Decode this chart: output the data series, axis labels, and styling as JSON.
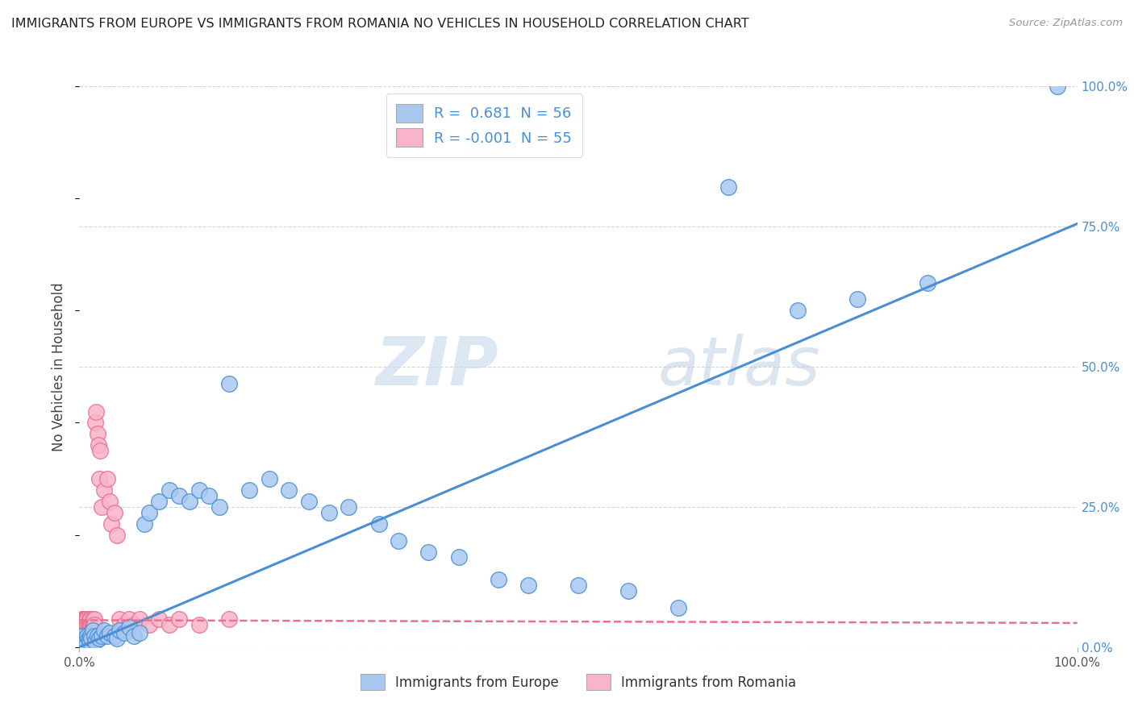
{
  "title": "IMMIGRANTS FROM EUROPE VS IMMIGRANTS FROM ROMANIA NO VEHICLES IN HOUSEHOLD CORRELATION CHART",
  "source": "Source: ZipAtlas.com",
  "ylabel": "No Vehicles in Household",
  "xlim": [
    0,
    1.0
  ],
  "ylim": [
    0,
    1.0
  ],
  "series1_color": "#a8c8f0",
  "series2_color": "#f8b4c8",
  "line1_color": "#4a8fd4",
  "line2_color": "#e87090",
  "grid_color": "#cccccc",
  "bg_color": "#ffffff",
  "watermark_zip": "ZIP",
  "watermark_atlas": "atlas",
  "series1_label": "Immigrants from Europe",
  "series2_label": "Immigrants from Romania",
  "blue_line_x0": 0.0,
  "blue_line_y0": 0.0,
  "blue_line_x1": 1.0,
  "blue_line_y1": 0.755,
  "pink_line_x0": 0.0,
  "pink_line_y0": 0.048,
  "pink_line_x1": 1.0,
  "pink_line_y1": 0.043,
  "blue_x": [
    0.003,
    0.004,
    0.005,
    0.006,
    0.007,
    0.008,
    0.009,
    0.01,
    0.011,
    0.012,
    0.013,
    0.015,
    0.016,
    0.018,
    0.02,
    0.022,
    0.025,
    0.028,
    0.03,
    0.035,
    0.038,
    0.04,
    0.045,
    0.05,
    0.055,
    0.06,
    0.065,
    0.07,
    0.08,
    0.09,
    0.1,
    0.11,
    0.12,
    0.13,
    0.14,
    0.15,
    0.17,
    0.19,
    0.21,
    0.23,
    0.25,
    0.27,
    0.3,
    0.32,
    0.35,
    0.38,
    0.42,
    0.45,
    0.5,
    0.55,
    0.6,
    0.65,
    0.72,
    0.78,
    0.85,
    0.98
  ],
  "blue_y": [
    0.01,
    0.02,
    0.015,
    0.01,
    0.005,
    0.02,
    0.015,
    0.01,
    0.02,
    0.015,
    0.03,
    0.02,
    0.01,
    0.02,
    0.015,
    0.02,
    0.03,
    0.02,
    0.025,
    0.02,
    0.015,
    0.03,
    0.025,
    0.035,
    0.02,
    0.025,
    0.22,
    0.24,
    0.26,
    0.28,
    0.27,
    0.26,
    0.28,
    0.27,
    0.25,
    0.47,
    0.28,
    0.3,
    0.28,
    0.26,
    0.24,
    0.25,
    0.22,
    0.19,
    0.17,
    0.16,
    0.12,
    0.11,
    0.11,
    0.1,
    0.07,
    0.82,
    0.6,
    0.62,
    0.65,
    1.0
  ],
  "pink_x": [
    0.001,
    0.002,
    0.003,
    0.003,
    0.004,
    0.004,
    0.005,
    0.005,
    0.005,
    0.006,
    0.006,
    0.006,
    0.007,
    0.007,
    0.007,
    0.008,
    0.008,
    0.009,
    0.009,
    0.01,
    0.01,
    0.01,
    0.011,
    0.011,
    0.012,
    0.012,
    0.013,
    0.013,
    0.014,
    0.015,
    0.015,
    0.016,
    0.017,
    0.018,
    0.019,
    0.02,
    0.021,
    0.022,
    0.025,
    0.028,
    0.03,
    0.032,
    0.035,
    0.038,
    0.04,
    0.045,
    0.05,
    0.055,
    0.06,
    0.07,
    0.08,
    0.09,
    0.1,
    0.12,
    0.15
  ],
  "pink_y": [
    0.04,
    0.03,
    0.05,
    0.04,
    0.03,
    0.05,
    0.04,
    0.05,
    0.04,
    0.03,
    0.05,
    0.04,
    0.04,
    0.05,
    0.03,
    0.04,
    0.05,
    0.04,
    0.03,
    0.04,
    0.05,
    0.03,
    0.04,
    0.05,
    0.04,
    0.03,
    0.05,
    0.04,
    0.04,
    0.05,
    0.04,
    0.4,
    0.42,
    0.38,
    0.36,
    0.3,
    0.35,
    0.25,
    0.28,
    0.3,
    0.26,
    0.22,
    0.24,
    0.2,
    0.05,
    0.04,
    0.05,
    0.04,
    0.05,
    0.04,
    0.05,
    0.04,
    0.05,
    0.04,
    0.05
  ]
}
